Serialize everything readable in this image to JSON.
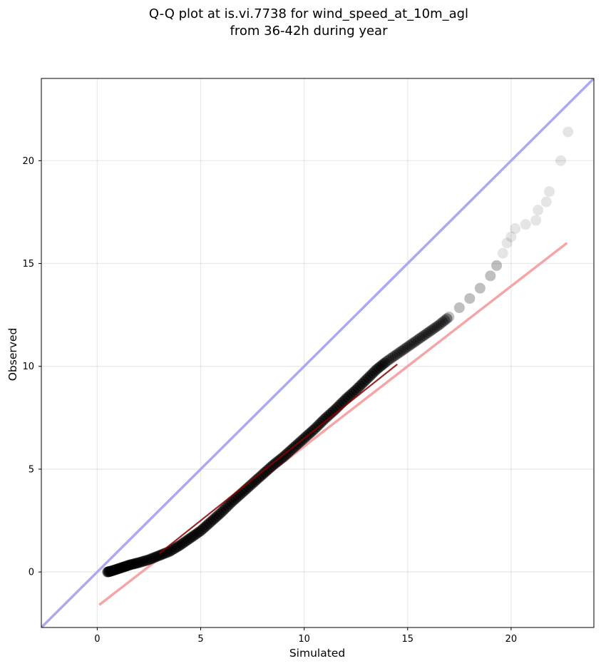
{
  "chart_data": {
    "type": "scatter",
    "title_lines": [
      "Q-Q plot at is.vi.7738 for wind_speed_at_10m_agl",
      "from 36-42h during year"
    ],
    "xlabel": "Simulated",
    "ylabel": "Observed",
    "xlim": [
      -2.7,
      24.0
    ],
    "ylim": [
      -2.7,
      24.0
    ],
    "x_ticks": [
      0,
      5,
      10,
      15,
      20
    ],
    "y_ticks": [
      0,
      5,
      10,
      15,
      20
    ],
    "x_tick_labels": [
      "0",
      "5",
      "10",
      "15",
      "20"
    ],
    "y_tick_labels": [
      "0",
      "5",
      "10",
      "15",
      "20"
    ],
    "grid": true,
    "series": [
      {
        "kind": "scatter",
        "color": "#000000",
        "points": [
          [
            0.5,
            0.0
          ],
          [
            0.7,
            0.05
          ],
          [
            1.0,
            0.15
          ],
          [
            1.3,
            0.25
          ],
          [
            1.6,
            0.35
          ],
          [
            2.0,
            0.45
          ],
          [
            2.5,
            0.6
          ],
          [
            3.0,
            0.8
          ],
          [
            3.5,
            1.0
          ],
          [
            4.0,
            1.3
          ],
          [
            4.5,
            1.65
          ],
          [
            5.0,
            2.0
          ],
          [
            5.5,
            2.45
          ],
          [
            6.0,
            2.9
          ],
          [
            6.5,
            3.4
          ],
          [
            7.0,
            3.85
          ],
          [
            7.5,
            4.3
          ],
          [
            8.0,
            4.75
          ],
          [
            8.5,
            5.2
          ],
          [
            9.0,
            5.6
          ],
          [
            9.5,
            6.05
          ],
          [
            10.0,
            6.5
          ],
          [
            10.5,
            6.95
          ],
          [
            11.0,
            7.45
          ],
          [
            11.5,
            7.9
          ],
          [
            12.0,
            8.4
          ],
          [
            12.5,
            8.85
          ],
          [
            13.0,
            9.35
          ],
          [
            13.5,
            9.85
          ],
          [
            14.0,
            10.25
          ],
          [
            14.5,
            10.6
          ],
          [
            15.0,
            10.95
          ],
          [
            15.5,
            11.3
          ],
          [
            16.0,
            11.65
          ],
          [
            16.5,
            12.0
          ],
          [
            17.0,
            12.4
          ],
          [
            17.5,
            12.85
          ],
          [
            18.0,
            13.3
          ],
          [
            18.5,
            13.8
          ],
          [
            19.0,
            14.4
          ],
          [
            19.3,
            14.9
          ],
          [
            19.6,
            15.5
          ],
          [
            19.8,
            16.0
          ],
          [
            20.0,
            16.3
          ],
          [
            20.2,
            16.7
          ],
          [
            20.7,
            16.9
          ],
          [
            21.2,
            17.1
          ],
          [
            21.3,
            17.6
          ],
          [
            21.7,
            18.0
          ],
          [
            21.85,
            18.5
          ],
          [
            22.4,
            20.0
          ],
          [
            22.75,
            21.4
          ]
        ]
      },
      {
        "kind": "line",
        "name_hidden": "1:1 reference",
        "color": "#aaaaf0",
        "points": [
          [
            -2.7,
            -2.7
          ],
          [
            24.0,
            24.0
          ]
        ]
      },
      {
        "kind": "line",
        "name_hidden": "fit",
        "color": "#f5a5a5",
        "points": [
          [
            0.1,
            -1.6
          ],
          [
            22.7,
            16.0
          ]
        ]
      },
      {
        "kind": "line",
        "name_hidden": "fit overlay",
        "color": "#8b0000",
        "points": [
          [
            3.0,
            0.9
          ],
          [
            14.5,
            10.1
          ]
        ]
      }
    ]
  }
}
